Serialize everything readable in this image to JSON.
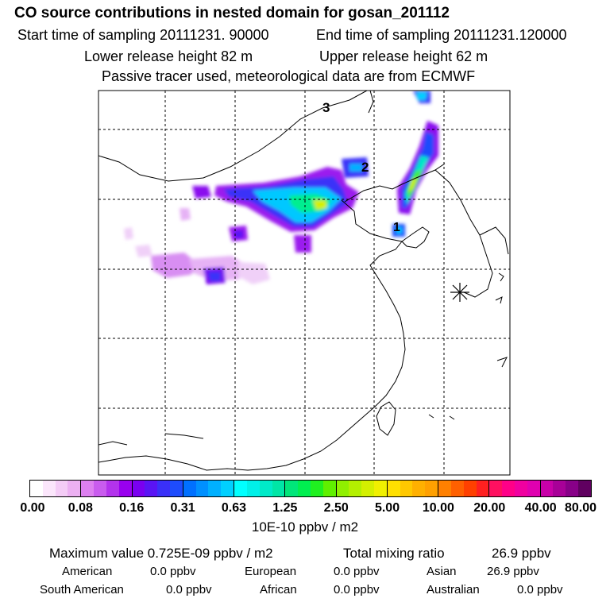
{
  "header": {
    "title": "CO  source contributions in nested domain for gosan_201112",
    "start": "Start time of sampling 20111231. 90000",
    "end": "End time of sampling 20111231.120000",
    "lower": "Lower release height   82 m",
    "upper": "Upper release height   62 m",
    "note": "Passive tracer used, meteorological data are from ECMWF"
  },
  "map": {
    "labels": [
      "3",
      "2",
      "1"
    ],
    "receptor_icon": "asterisk-receptor-marker",
    "grid": "dashed"
  },
  "colorbar": {
    "ticks": [
      "0.00",
      "0.08",
      "0.16",
      "0.31",
      "0.63",
      "1.25",
      "2.50",
      "5.00",
      "10.00",
      "20.00",
      "40.00",
      "80.00"
    ],
    "units": "10E-10 ppbv / m2",
    "colors": [
      [
        "#ffffff",
        "#fbe6fb",
        "#f4ccf6",
        "#ecb0f2"
      ],
      [
        "#dd80f0",
        "#c95cee",
        "#b333ec",
        "#9900ee"
      ],
      [
        "#7a00f0",
        "#5a14f4",
        "#3a30f8",
        "#1e4cfc"
      ],
      [
        "#0070ff",
        "#0090ff",
        "#00b0ff",
        "#00d0ff"
      ],
      [
        "#00ffff",
        "#00f0e8",
        "#00eac8",
        "#00e6a6"
      ],
      [
        "#00e67a",
        "#00ee50",
        "#20f020",
        "#60f000"
      ],
      [
        "#90f000",
        "#b4f000",
        "#d4f000",
        "#f0f000"
      ],
      [
        "#ffe000",
        "#ffc800",
        "#ffb000",
        "#ffa000"
      ],
      [
        "#ff8000",
        "#ff6000",
        "#ff4000",
        "#ff2020"
      ],
      [
        "#ff1060",
        "#ff0088",
        "#f000a0",
        "#e000b0"
      ],
      [
        "#c800a8",
        "#a80098",
        "#880088",
        "#600060"
      ]
    ]
  },
  "stats": {
    "max_label": "Maximum value  0.725E-09 ppbv / m2",
    "total_label": "Total mixing ratio",
    "total_value": "26.9 ppbv"
  },
  "regions": [
    {
      "name": "American",
      "value": "0.0 ppbv"
    },
    {
      "name": "European",
      "value": "0.0 ppbv"
    },
    {
      "name": "Asian",
      "value": "26.9 ppbv"
    },
    {
      "name": "South American",
      "value": "0.0 ppbv"
    },
    {
      "name": "African",
      "value": "0.0 ppbv"
    },
    {
      "name": "Australian",
      "value": "0.0 ppbv"
    }
  ]
}
